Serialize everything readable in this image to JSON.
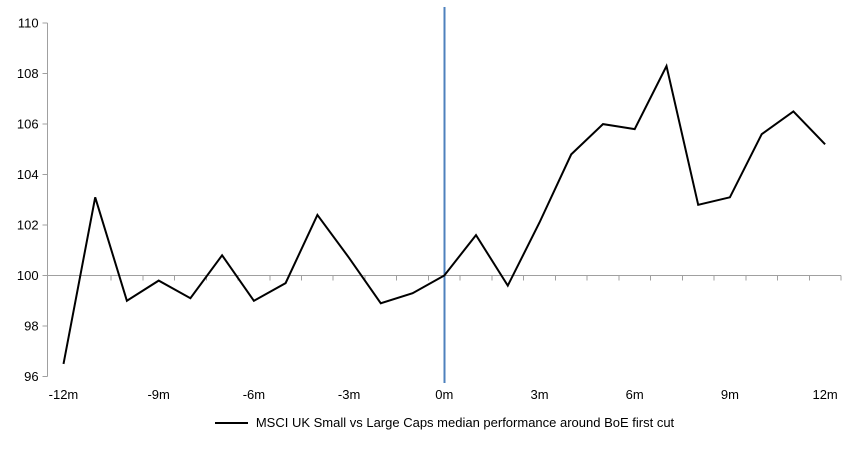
{
  "chart_data": {
    "type": "line",
    "title": "",
    "xlabel": "",
    "ylabel": "",
    "x": [
      -12,
      -11,
      -10,
      -9,
      -8,
      -7,
      -6,
      -5,
      -4,
      -3,
      -2,
      -1,
      0,
      1,
      2,
      3,
      4,
      5,
      6,
      7,
      8,
      9,
      10,
      11,
      12
    ],
    "series": [
      {
        "name": "MSCI UK Small vs Large Caps median performance around BoE first cut",
        "color": "#000000",
        "values": [
          96.5,
          103.1,
          99.0,
          99.8,
          99.1,
          100.8,
          99.0,
          99.7,
          102.4,
          100.7,
          98.9,
          99.3,
          100.0,
          101.6,
          99.6,
          102.1,
          104.8,
          106.0,
          105.8,
          108.3,
          102.8,
          103.1,
          105.6,
          106.5,
          105.2
        ]
      }
    ],
    "ylim": [
      96,
      110
    ],
    "y_ticks": [
      110,
      108,
      106,
      104,
      102,
      100,
      98,
      96
    ],
    "x_ticks": [
      {
        "month": -12,
        "label": "-12m"
      },
      {
        "month": -9,
        "label": "-9m"
      },
      {
        "month": -6,
        "label": "-6m"
      },
      {
        "month": -3,
        "label": "-3m"
      },
      {
        "month": 0,
        "label": "0m"
      },
      {
        "month": 3,
        "label": "3m"
      },
      {
        "month": 6,
        "label": "6m"
      },
      {
        "month": 9,
        "label": "9m"
      },
      {
        "month": 12,
        "label": "12m"
      }
    ],
    "axis_crosses_at": 100,
    "event_line": {
      "x": 0,
      "color": "#4E81BD"
    },
    "axis_color": "#A0A0A0",
    "grid": "off",
    "legend_position": "bottom"
  }
}
